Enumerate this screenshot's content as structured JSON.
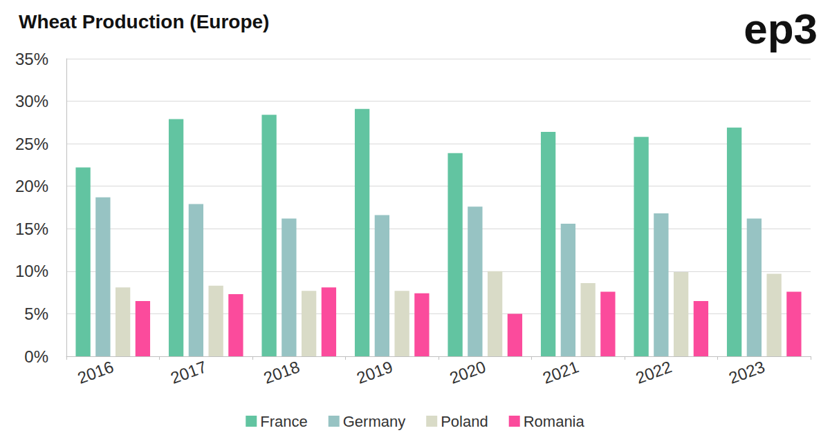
{
  "chart_data": {
    "type": "bar",
    "title": "Wheat Production (Europe)",
    "logo": "ep3",
    "categories": [
      "2016",
      "2017",
      "2018",
      "2019",
      "2020",
      "2021",
      "2022",
      "2023"
    ],
    "series": [
      {
        "name": "France",
        "color": "#62c4a1",
        "values": [
          22.2,
          27.9,
          28.4,
          29.1,
          23.9,
          26.4,
          25.8,
          26.9
        ]
      },
      {
        "name": "Germany",
        "color": "#97c3c3",
        "values": [
          18.7,
          17.9,
          16.2,
          16.6,
          17.6,
          15.6,
          16.8,
          16.2
        ]
      },
      {
        "name": "Poland",
        "color": "#d9dbc7",
        "values": [
          8.1,
          8.3,
          7.7,
          7.7,
          10.0,
          8.6,
          9.9,
          9.7
        ]
      },
      {
        "name": "Romania",
        "color": "#fb4b9c",
        "values": [
          6.5,
          7.3,
          8.1,
          7.4,
          5.0,
          7.6,
          6.5,
          7.6
        ]
      }
    ],
    "ylim": [
      0,
      35
    ],
    "yticks": [
      {
        "value": 0,
        "label": "0%"
      },
      {
        "value": 5,
        "label": "5%"
      },
      {
        "value": 10,
        "label": "10%"
      },
      {
        "value": 15,
        "label": "15%"
      },
      {
        "value": 20,
        "label": "20%"
      },
      {
        "value": 25,
        "label": "25%"
      },
      {
        "value": 30,
        "label": "30%"
      },
      {
        "value": 35,
        "label": "35%"
      }
    ],
    "grid": true,
    "legend": "bottom"
  }
}
